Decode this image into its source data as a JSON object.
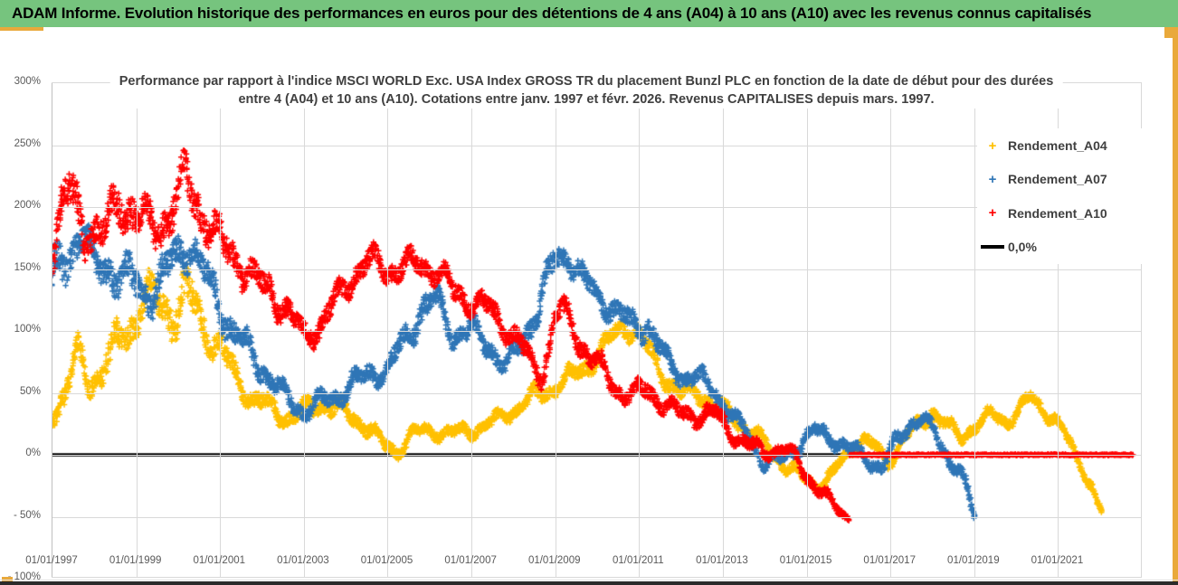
{
  "window": {
    "title": "ADAM Informe. Evolution historique des performances en euros pour des détentions de 4 ans (A04) à 10 ans (A10) avec les revenus connus capitalisés"
  },
  "colors": {
    "title_bar_green": "#76C47E",
    "gold_border": "#E9A93B",
    "series_a04": "#FFC000",
    "series_a07": "#2E75B6",
    "series_a10": "#FF0000",
    "zero_line": "#000000"
  },
  "chart_data": {
    "type": "scatter",
    "marker": "+",
    "title_line1": "Performance par rapport à l'indice MSCI WORLD Exc. USA Index GROSS TR  du placement Bunzl PLC en fonction de la date de début pour des durées",
    "title_line2": "entre 4 (A04) et 10 ans (A10). Cotations entre janv. 1997 et févr. 2026. Revenus CAPITALISES depuis mars. 1997.",
    "grid": true,
    "legend_position": "right-inside",
    "ylim": [
      -100,
      300
    ],
    "y_ticks": [
      {
        "v": 300,
        "label": "300%"
      },
      {
        "v": 250,
        "label": "250%"
      },
      {
        "v": 200,
        "label": "200%"
      },
      {
        "v": 150,
        "label": "150%"
      },
      {
        "v": 100,
        "label": "100%"
      },
      {
        "v": 50,
        "label": "50%"
      },
      {
        "v": 0,
        "label": "0%"
      },
      {
        "v": -50,
        "label": "- 50%"
      },
      {
        "v": -100,
        "label": "- 100%"
      }
    ],
    "x_axis": {
      "min_year": 1997.0,
      "max_year": 2023.02
    },
    "x_ticks": [
      {
        "year": 1997,
        "label": "01/01/1997"
      },
      {
        "year": 1999,
        "label": "01/01/1999"
      },
      {
        "year": 2001,
        "label": "01/01/2001"
      },
      {
        "year": 2003,
        "label": "01/01/2003"
      },
      {
        "year": 2005,
        "label": "01/01/2005"
      },
      {
        "year": 2007,
        "label": "01/01/2007"
      },
      {
        "year": 2009,
        "label": "01/01/2009"
      },
      {
        "year": 2011,
        "label": "01/01/2011"
      },
      {
        "year": 2013,
        "label": "01/01/2013"
      },
      {
        "year": 2015,
        "label": "01/01/2015"
      },
      {
        "year": 2017,
        "label": "01/01/2017"
      },
      {
        "year": 2019,
        "label": "01/01/2019"
      },
      {
        "year": 2021,
        "label": "01/01/2021"
      }
    ],
    "legend": [
      {
        "label": "Rendement_A04",
        "color": "#FFC000",
        "marker": "+"
      },
      {
        "label": "Rendement_A07",
        "color": "#2E75B6",
        "marker": "+"
      },
      {
        "label": "Rendement_A10",
        "color": "#FF0000",
        "marker": "+"
      },
      {
        "label": "0,0%",
        "color": "#000000",
        "marker": "line"
      }
    ],
    "zero_line": {
      "value": 0,
      "color": "#000000",
      "from_year": 1997.0,
      "to_year": 2022.78,
      "thickness": 3.5
    },
    "series": [
      {
        "name": "Rendement_A04",
        "color": "#FFC000",
        "seed": 7,
        "anchors": [
          [
            1997.0,
            35,
            12
          ],
          [
            1997.3,
            48,
            14
          ],
          [
            1997.6,
            80,
            16
          ],
          [
            1997.9,
            60,
            14
          ],
          [
            1998.2,
            68,
            16
          ],
          [
            1998.6,
            92,
            20
          ],
          [
            1999.0,
            112,
            20
          ],
          [
            1999.3,
            130,
            16
          ],
          [
            1999.7,
            118,
            22
          ],
          [
            2000.0,
            120,
            26
          ],
          [
            2000.3,
            125,
            28
          ],
          [
            2000.7,
            100,
            18
          ],
          [
            2001.0,
            85,
            15
          ],
          [
            2001.4,
            62,
            13
          ],
          [
            2001.8,
            45,
            11
          ],
          [
            2002.2,
            38,
            10
          ],
          [
            2002.6,
            30,
            9
          ],
          [
            2003.0,
            35,
            10
          ],
          [
            2003.5,
            42,
            11
          ],
          [
            2004.0,
            34,
            10
          ],
          [
            2004.5,
            24,
            9
          ],
          [
            2004.9,
            8,
            8
          ],
          [
            2005.2,
            3,
            8
          ],
          [
            2005.6,
            17,
            8
          ],
          [
            2006.0,
            20,
            7
          ],
          [
            2006.5,
            17,
            7
          ],
          [
            2007.0,
            20,
            7
          ],
          [
            2007.5,
            26,
            7
          ],
          [
            2008.0,
            36,
            8
          ],
          [
            2008.5,
            47,
            9
          ],
          [
            2009.0,
            55,
            9
          ],
          [
            2009.5,
            65,
            10
          ],
          [
            2010.0,
            80,
            10
          ],
          [
            2010.6,
            105,
            10
          ],
          [
            2010.9,
            100,
            10
          ],
          [
            2011.2,
            86,
            10
          ],
          [
            2011.6,
            64,
            10
          ],
          [
            2012.0,
            48,
            9
          ],
          [
            2012.4,
            52,
            9
          ],
          [
            2012.8,
            38,
            9
          ],
          [
            2013.2,
            32,
            9
          ],
          [
            2013.6,
            21,
            8
          ],
          [
            2014.0,
            9,
            7
          ],
          [
            2014.4,
            -6,
            7
          ],
          [
            2014.8,
            -16,
            7
          ],
          [
            2015.2,
            -24,
            7
          ],
          [
            2015.6,
            -17,
            7
          ],
          [
            2016.0,
            2,
            6
          ],
          [
            2016.3,
            14,
            7
          ],
          [
            2016.6,
            7,
            7
          ],
          [
            2016.95,
            -7,
            6
          ],
          [
            2017.3,
            14,
            7
          ],
          [
            2017.7,
            24,
            7
          ],
          [
            2018.0,
            36,
            9
          ],
          [
            2018.4,
            22,
            7
          ],
          [
            2018.7,
            13,
            7
          ],
          [
            2019.0,
            24,
            7
          ],
          [
            2019.4,
            32,
            7
          ],
          [
            2019.8,
            27,
            7
          ],
          [
            2020.1,
            38,
            7
          ],
          [
            2020.35,
            46,
            7
          ],
          [
            2020.6,
            38,
            7
          ],
          [
            2020.9,
            30,
            7
          ],
          [
            2021.1,
            20,
            6
          ],
          [
            2021.3,
            8,
            6
          ],
          [
            2021.6,
            -12,
            6
          ],
          [
            2021.85,
            -30,
            6
          ],
          [
            2022.05,
            -48,
            4
          ]
        ]
      },
      {
        "name": "Rendement_A07",
        "color": "#2E75B6",
        "seed": 13,
        "anchors": [
          [
            1997.0,
            135,
            24
          ],
          [
            1997.4,
            165,
            24
          ],
          [
            1997.7,
            182,
            20
          ],
          [
            1998.0,
            150,
            18
          ],
          [
            1998.4,
            152,
            20
          ],
          [
            1998.8,
            140,
            22
          ],
          [
            1999.2,
            132,
            20
          ],
          [
            1999.6,
            140,
            20
          ],
          [
            2000.0,
            162,
            20
          ],
          [
            2000.3,
            172,
            18
          ],
          [
            2000.7,
            140,
            18
          ],
          [
            2001.0,
            120,
            17
          ],
          [
            2001.4,
            95,
            15
          ],
          [
            2001.8,
            80,
            14
          ],
          [
            2002.2,
            62,
            12
          ],
          [
            2002.6,
            45,
            10
          ],
          [
            2003.0,
            35,
            9
          ],
          [
            2003.4,
            42,
            10
          ],
          [
            2003.8,
            48,
            10
          ],
          [
            2004.2,
            58,
            11
          ],
          [
            2004.6,
            66,
            11
          ],
          [
            2005.0,
            68,
            10
          ],
          [
            2005.4,
            92,
            14
          ],
          [
            2005.8,
            118,
            16
          ],
          [
            2006.2,
            122,
            15
          ],
          [
            2006.6,
            96,
            13
          ],
          [
            2007.0,
            100,
            12
          ],
          [
            2007.4,
            90,
            12
          ],
          [
            2007.8,
            70,
            10
          ],
          [
            2008.2,
            92,
            14
          ],
          [
            2008.6,
            120,
            15
          ],
          [
            2009.0,
            158,
            14
          ],
          [
            2009.3,
            162,
            12
          ],
          [
            2009.7,
            140,
            12
          ],
          [
            2010.0,
            128,
            12
          ],
          [
            2010.4,
            118,
            12
          ],
          [
            2010.8,
            104,
            13
          ],
          [
            2011.2,
            106,
            13
          ],
          [
            2011.6,
            78,
            10
          ],
          [
            2012.0,
            64,
            10
          ],
          [
            2012.4,
            62,
            10
          ],
          [
            2012.8,
            52,
            10
          ],
          [
            2013.2,
            32,
            9
          ],
          [
            2013.6,
            15,
            8
          ],
          [
            2014.0,
            -7,
            8
          ],
          [
            2014.4,
            -4,
            8
          ],
          [
            2014.8,
            8,
            8
          ],
          [
            2015.2,
            19,
            8
          ],
          [
            2015.6,
            14,
            8
          ],
          [
            2016.0,
            5,
            7
          ],
          [
            2016.4,
            -2,
            8
          ],
          [
            2016.8,
            -11,
            7
          ],
          [
            2017.1,
            8,
            8
          ],
          [
            2017.5,
            27,
            8
          ],
          [
            2017.8,
            29,
            7
          ],
          [
            2018.1,
            14,
            7
          ],
          [
            2018.4,
            -4,
            8
          ],
          [
            2018.65,
            -11,
            7
          ],
          [
            2018.85,
            -32,
            7
          ],
          [
            2019.0,
            -50,
            4
          ]
        ]
      },
      {
        "name": "Rendement_A10",
        "color": "#FF0000",
        "seed": 29,
        "anchors": [
          [
            1997.0,
            170,
            24
          ],
          [
            1997.4,
            212,
            25
          ],
          [
            1997.8,
            185,
            22
          ],
          [
            1998.2,
            172,
            20
          ],
          [
            1998.6,
            212,
            25
          ],
          [
            1999.0,
            190,
            22
          ],
          [
            1999.4,
            184,
            20
          ],
          [
            1999.8,
            194,
            22
          ],
          [
            2000.2,
            222,
            25
          ],
          [
            2000.6,
            195,
            22
          ],
          [
            2001.0,
            170,
            20
          ],
          [
            2001.4,
            160,
            18
          ],
          [
            2001.8,
            140,
            16
          ],
          [
            2002.2,
            134,
            15
          ],
          [
            2002.6,
            115,
            14
          ],
          [
            2003.0,
            96,
            12
          ],
          [
            2003.4,
            105,
            13
          ],
          [
            2003.8,
            124,
            14
          ],
          [
            2004.2,
            148,
            14
          ],
          [
            2004.6,
            156,
            13
          ],
          [
            2005.0,
            150,
            13
          ],
          [
            2005.4,
            152,
            13
          ],
          [
            2005.8,
            154,
            13
          ],
          [
            2006.2,
            148,
            13
          ],
          [
            2006.6,
            130,
            13
          ],
          [
            2007.0,
            124,
            12
          ],
          [
            2007.4,
            118,
            12
          ],
          [
            2007.8,
            104,
            12
          ],
          [
            2008.1,
            94,
            13
          ],
          [
            2008.45,
            72,
            12
          ],
          [
            2008.7,
            64,
            11
          ],
          [
            2009.0,
            114,
            14
          ],
          [
            2009.3,
            112,
            13
          ],
          [
            2009.6,
            90,
            12
          ],
          [
            2010.0,
            74,
            11
          ],
          [
            2010.4,
            55,
            10
          ],
          [
            2010.8,
            48,
            10
          ],
          [
            2011.2,
            52,
            10
          ],
          [
            2011.6,
            42,
            10
          ],
          [
            2012.0,
            32,
            9
          ],
          [
            2012.4,
            32,
            9
          ],
          [
            2012.8,
            34,
            9
          ],
          [
            2013.2,
            18,
            8
          ],
          [
            2013.6,
            8,
            8
          ],
          [
            2014.0,
            2,
            7
          ],
          [
            2014.4,
            5,
            7
          ],
          [
            2014.7,
            0,
            6
          ],
          [
            2015.0,
            -17,
            7
          ],
          [
            2015.35,
            -30,
            7
          ],
          [
            2015.7,
            -43,
            6
          ],
          [
            2016.0,
            -51,
            3
          ]
        ],
        "flat_segment": {
          "from": 2016.02,
          "to": 2022.8,
          "value": 0,
          "thickness": 5
        }
      }
    ]
  }
}
